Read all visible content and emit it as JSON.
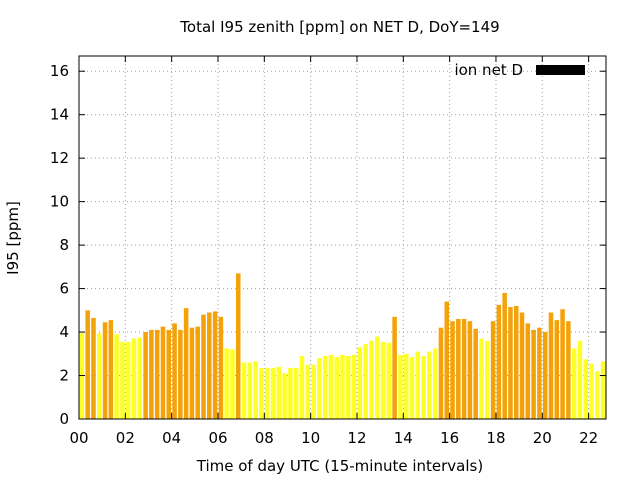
{
  "chart_data": {
    "type": "bar",
    "title": "Total I95 zenith [ppm] on NET D, DoY=149",
    "xlabel": "Time of day UTC (15-minute intervals)",
    "ylabel": "I95 [ppm]",
    "xlim": [
      0,
      22.75
    ],
    "ylim": [
      0,
      16.7
    ],
    "xticks": [
      "00",
      "02",
      "04",
      "06",
      "08",
      "10",
      "12",
      "14",
      "16",
      "18",
      "20",
      "22"
    ],
    "yticks": [
      "0",
      "2",
      "4",
      "6",
      "8",
      "10",
      "12",
      "14",
      "16"
    ],
    "grid": true,
    "legend": {
      "position": "top-right",
      "label": "ion net D",
      "color": "#000000"
    },
    "colors": {
      "high": "#f4a20a",
      "low": "#ffff28"
    },
    "interval_hours": 0.25,
    "series": [
      {
        "values": [
          3.95,
          5.0,
          4.65,
          3.95,
          4.45,
          4.55,
          3.9,
          3.55,
          3.55,
          3.7,
          3.75,
          4.0,
          4.1,
          4.1,
          4.25,
          4.1,
          4.4,
          4.1,
          5.1,
          4.2,
          4.25,
          4.8,
          4.9,
          4.95,
          4.7,
          3.25,
          3.2,
          6.7,
          2.6,
          2.6,
          2.65,
          2.35,
          2.35,
          2.35,
          2.4,
          2.1,
          2.35,
          2.35,
          2.9,
          2.5,
          2.5,
          2.8,
          2.9,
          2.95,
          2.85,
          2.95,
          2.9,
          2.95,
          3.3,
          3.45,
          3.6,
          3.8,
          3.55,
          3.5,
          4.7,
          2.95,
          3.0,
          2.85,
          3.1,
          2.9,
          3.1,
          3.25,
          4.2,
          5.4,
          4.5,
          4.6,
          4.6,
          4.5,
          4.15,
          3.7,
          3.6,
          4.5,
          5.25,
          5.8,
          5.15,
          5.2,
          4.9,
          4.4,
          4.1,
          4.2,
          4.0,
          4.9,
          4.55,
          5.05,
          4.5,
          3.25,
          3.6,
          2.75,
          2.55,
          2.2,
          2.65
        ]
      }
    ]
  }
}
